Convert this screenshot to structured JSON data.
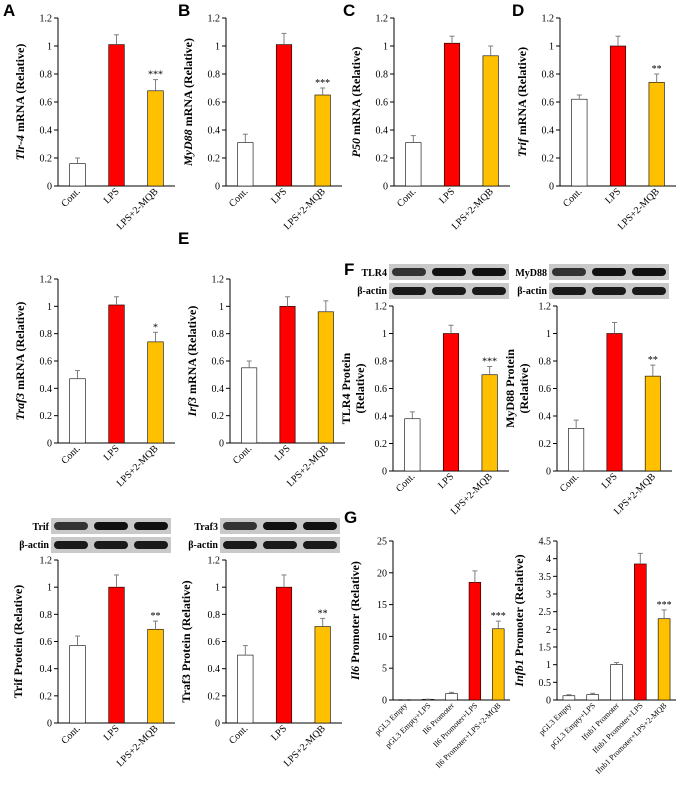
{
  "colors": {
    "control": "#ffffff",
    "lps": "#ff0000",
    "treatment": "#ffc000",
    "axis": "#000000",
    "error": "#7f7f7f"
  },
  "blot_labels": {
    "beta_actin": "β-actin"
  },
  "chart_data": [
    {
      "type": "bar",
      "panel_letter": "A",
      "ylabel_gene": "Tlr-4",
      "ylabel_rest": " mRNA (Relative)",
      "ylim": [
        0,
        1.2
      ],
      "ticks": [
        "0",
        "0.2",
        "0.4",
        "0.6",
        "0.8",
        "1",
        "1.2"
      ],
      "categories": [
        "Cont.",
        "LPS",
        "LPS+2-MQB"
      ],
      "values": [
        0.16,
        1.01,
        0.68
      ],
      "errors": [
        0.04,
        0.07,
        0.08
      ],
      "significance": [
        "",
        "",
        "***"
      ]
    },
    {
      "type": "bar",
      "panel_letter": "B",
      "ylabel_gene": "MyD88",
      "ylabel_rest": " mRNA (Relative)",
      "ylim": [
        0,
        1.2
      ],
      "ticks": [
        "0",
        "0.2",
        "0.4",
        "0.6",
        "0.8",
        "1",
        "1.2"
      ],
      "categories": [
        "Cont.",
        "LPS",
        "LPS+2-MQB"
      ],
      "values": [
        0.31,
        1.01,
        0.65
      ],
      "errors": [
        0.06,
        0.08,
        0.05
      ],
      "significance": [
        "",
        "",
        "***"
      ]
    },
    {
      "type": "bar",
      "panel_letter": "C",
      "ylabel_gene": "P50",
      "ylabel_rest": " mRNA (Relative)",
      "ylim": [
        0,
        1.2
      ],
      "ticks": [
        "0",
        "0.2",
        "0.4",
        "0.6",
        "0.8",
        "1",
        "1.2"
      ],
      "categories": [
        "Cont.",
        "LPS",
        "LPS+2-MQB"
      ],
      "values": [
        0.31,
        1.02,
        0.93
      ],
      "errors": [
        0.05,
        0.05,
        0.07
      ],
      "significance": [
        "",
        "",
        ""
      ]
    },
    {
      "type": "bar",
      "panel_letter": "D",
      "ylabel_gene": "Trif",
      "ylabel_rest": " mRNA (Relative)",
      "ylim": [
        0,
        1.2
      ],
      "ticks": [
        "0",
        "0.2",
        "0.4",
        "0.6",
        "0.8",
        "1",
        "1.2"
      ],
      "categories": [
        "Cont.",
        "LPS",
        "LPS+2-MQB"
      ],
      "values": [
        0.62,
        1.0,
        0.74
      ],
      "errors": [
        0.03,
        0.07,
        0.06
      ],
      "significance": [
        "",
        "",
        "**"
      ]
    },
    {
      "type": "bar",
      "panel_letter": "",
      "ylabel_gene": "Traf3",
      "ylabel_rest": " mRNA (Relative)",
      "ylim": [
        0,
        1.2
      ],
      "ticks": [
        "0",
        "0.2",
        "0.4",
        "0.6",
        "0.8",
        "1",
        "1.2"
      ],
      "categories": [
        "Cont.",
        "LPS",
        "LPS+2-MQB"
      ],
      "values": [
        0.47,
        1.01,
        0.74
      ],
      "errors": [
        0.06,
        0.06,
        0.07
      ],
      "significance": [
        "",
        "",
        "*"
      ]
    },
    {
      "type": "bar",
      "panel_letter": "E",
      "ylabel_gene": "Irf3",
      "ylabel_rest": " mRNA (Relative)",
      "ylim": [
        0,
        1.2
      ],
      "ticks": [
        "0",
        "0.2",
        "0.4",
        "0.6",
        "0.8",
        "1",
        "1.2"
      ],
      "categories": [
        "Cont.",
        "LPS",
        "LPS+2-MQB"
      ],
      "values": [
        0.55,
        1.0,
        0.96
      ],
      "errors": [
        0.05,
        0.07,
        0.08
      ],
      "significance": [
        "",
        "",
        ""
      ]
    },
    {
      "type": "bar",
      "panel_letter": "F",
      "blot_top": "TLR4",
      "blot_bottom": "β-actin",
      "ylabel_lines": [
        "TLR4 Protein",
        "(Relative)"
      ],
      "ylim": [
        0,
        1.2
      ],
      "ticks": [
        "0",
        "0.2",
        "0.4",
        "0.6",
        "0.8",
        "1",
        "1.2"
      ],
      "categories": [
        "Cont.",
        "LPS",
        "LPS+2-MQB"
      ],
      "values": [
        0.38,
        1.0,
        0.7
      ],
      "errors": [
        0.05,
        0.06,
        0.06
      ],
      "significance": [
        "",
        "",
        "***"
      ]
    },
    {
      "type": "bar",
      "panel_letter": "",
      "blot_top": "MyD88",
      "blot_bottom": "β-actin",
      "ylabel_lines": [
        "MyD88 Protein",
        "(Relative)"
      ],
      "ylim": [
        0,
        1.2
      ],
      "ticks": [
        "0",
        "0.2",
        "0.4",
        "0.6",
        "0.8",
        "1",
        "1.2"
      ],
      "categories": [
        "Cont.",
        "LPS",
        "LPS+2-MQB"
      ],
      "values": [
        0.31,
        1.0,
        0.69
      ],
      "errors": [
        0.06,
        0.08,
        0.08
      ],
      "significance": [
        "",
        "",
        "**"
      ]
    },
    {
      "type": "bar",
      "panel_letter": "",
      "blot_top": "Trif",
      "blot_bottom": "β-actin",
      "ylabel_lines": [
        "Trif Protein (Relative)"
      ],
      "ylim": [
        0,
        1.2
      ],
      "ticks": [
        "0",
        "0.2",
        "0.4",
        "0.6",
        "0.8",
        "1",
        "1.2"
      ],
      "categories": [
        "Cont.",
        "LPS",
        "LPS+2-MQB"
      ],
      "values": [
        0.57,
        1.0,
        0.69
      ],
      "errors": [
        0.07,
        0.09,
        0.06
      ],
      "significance": [
        "",
        "",
        "**"
      ]
    },
    {
      "type": "bar",
      "panel_letter": "",
      "blot_top": "Traf3",
      "blot_bottom": "β-actin",
      "ylabel_lines": [
        "Traf3 Protein (Relative)"
      ],
      "ylim": [
        0,
        1.2
      ],
      "ticks": [
        "0",
        "0.2",
        "0.4",
        "0.6",
        "0.8",
        "1",
        "1.2"
      ],
      "categories": [
        "Cont.",
        "LPS",
        "LPS+2-MQB"
      ],
      "values": [
        0.5,
        1.0,
        0.71
      ],
      "errors": [
        0.07,
        0.09,
        0.06
      ],
      "significance": [
        "",
        "",
        "**"
      ]
    },
    {
      "type": "bar",
      "panel_letter": "G",
      "ylabel_gene": "Il6",
      "ylabel_rest": " Promoter (Relative)",
      "ylim": [
        0,
        25
      ],
      "ticks": [
        "0",
        "5",
        "10",
        "15",
        "20",
        "25"
      ],
      "categories": [
        "pGL3 Empty",
        "pGL3 Empty+LPS",
        "Il6 Promoter",
        "Il6 Promoter+LPS",
        "Il6 Promoter+LPS+2-MQB"
      ],
      "values": [
        0.05,
        0.1,
        1.0,
        18.5,
        11.2
      ],
      "errors": [
        0.02,
        0.03,
        0.2,
        1.8,
        1.2
      ],
      "significance": [
        "",
        "",
        "",
        "",
        "***"
      ]
    },
    {
      "type": "bar",
      "panel_letter": "",
      "ylabel_gene": "Infb1",
      "ylabel_rest": " Promoter (Relative)",
      "ylim": [
        0,
        4.5
      ],
      "ticks": [
        "0",
        "0.5",
        "1",
        "1.5",
        "2",
        "2.5",
        "3",
        "3.5",
        "4",
        "4.5"
      ],
      "categories": [
        "pGL3 Empty",
        "pGL3 Empty+LPS",
        "Ifnb1 Promoter",
        "Ifnb1 Promoter+LPS",
        "Ifnb1 Promoter+LPS+2-MQB"
      ],
      "values": [
        0.12,
        0.15,
        1.0,
        3.85,
        2.3
      ],
      "errors": [
        0.03,
        0.04,
        0.06,
        0.3,
        0.25
      ],
      "significance": [
        "",
        "",
        "",
        "",
        "***"
      ]
    }
  ]
}
